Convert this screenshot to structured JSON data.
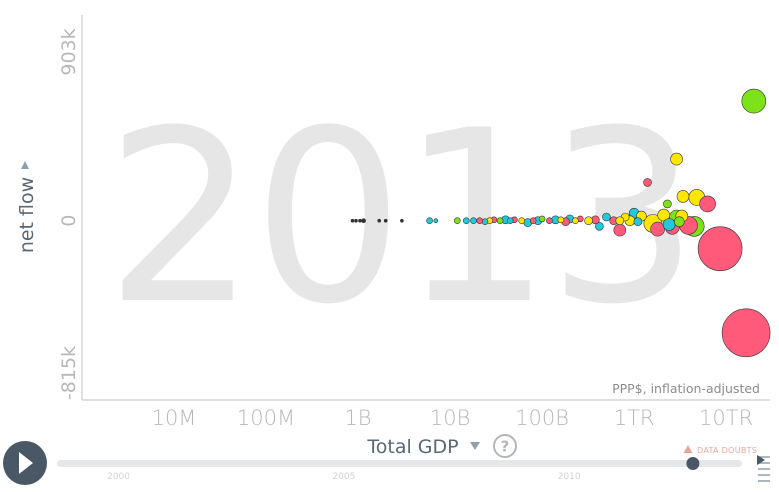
{
  "chart_data": {
    "type": "scatter",
    "year": "2013",
    "xlabel": "Total GDP",
    "ylabel": "net flow",
    "x_scale": "log",
    "x_ticks": [
      "10M",
      "100M",
      "1B",
      "10B",
      "100B",
      "1TR",
      "10TR"
    ],
    "x_tick_values": [
      10000000,
      100000000,
      1000000000,
      10000000000,
      100000000000,
      1000000000000,
      10000000000000
    ],
    "xlim": [
      1000000,
      30000000000000
    ],
    "y_ticks": [
      "903k",
      "0",
      "-815k"
    ],
    "y_tick_values": [
      903000,
      0,
      -815000
    ],
    "ylim": [
      -815000,
      903000
    ],
    "unit_note": "PPP$, inflation-adjusted",
    "colors": {
      "cyan": "#22c9dc",
      "pink": "#ff5a79",
      "yellow": "#ffe600",
      "green": "#7ee21b",
      "dark": "#333333"
    },
    "points": [
      {
        "x": 20000000000000,
        "y": 640000,
        "r": 12,
        "c": "green"
      },
      {
        "x": 2900000000000,
        "y": 330000,
        "r": 6,
        "c": "yellow"
      },
      {
        "x": 1400000000000,
        "y": 205000,
        "r": 4,
        "c": "pink"
      },
      {
        "x": 3400000000000,
        "y": 130000,
        "r": 6,
        "c": "yellow"
      },
      {
        "x": 4800000000000,
        "y": 125000,
        "r": 8,
        "c": "yellow"
      },
      {
        "x": 6300000000000,
        "y": 90000,
        "r": 8,
        "c": "pink"
      },
      {
        "x": 2300000000000,
        "y": 90000,
        "r": 4,
        "c": "green"
      },
      {
        "x": 2100000000000,
        "y": 30000,
        "r": 6,
        "c": "yellow"
      },
      {
        "x": 2900000000000,
        "y": 20000,
        "r": 7,
        "c": "green"
      },
      {
        "x": 3300000000000,
        "y": 25000,
        "r": 6,
        "c": "yellow"
      },
      {
        "x": 1000000000000,
        "y": 40000,
        "r": 5,
        "c": "cyan"
      },
      {
        "x": 1200000000000,
        "y": 25000,
        "r": 5,
        "c": "yellow"
      },
      {
        "x": 1600000000000,
        "y": -15000,
        "r": 9,
        "c": "yellow"
      },
      {
        "x": 4500000000000,
        "y": -30000,
        "r": 10,
        "c": "green"
      },
      {
        "x": 3900000000000,
        "y": -25000,
        "r": 9,
        "c": "pink"
      },
      {
        "x": 2600000000000,
        "y": -35000,
        "r": 7,
        "c": "pink"
      },
      {
        "x": 1800000000000,
        "y": -45000,
        "r": 7,
        "c": "pink"
      },
      {
        "x": 2400000000000,
        "y": -20000,
        "r": 6,
        "c": "cyan"
      },
      {
        "x": 3100000000000,
        "y": -5000,
        "r": 5,
        "c": "green"
      },
      {
        "x": 700000000000,
        "y": -50000,
        "r": 6,
        "c": "pink"
      },
      {
        "x": 800000000000,
        "y": 20000,
        "r": 4,
        "c": "yellow"
      },
      {
        "x": 500000000000,
        "y": 20000,
        "r": 4,
        "c": "cyan"
      },
      {
        "x": 420000000000,
        "y": -30000,
        "r": 4,
        "c": "cyan"
      },
      {
        "x": 600000000000,
        "y": 0,
        "r": 4,
        "c": "pink"
      },
      {
        "x": 700000000000,
        "y": 0,
        "r": 4,
        "c": "yellow"
      },
      {
        "x": 900000000000,
        "y": 0,
        "r": 5,
        "c": "yellow"
      },
      {
        "x": 1100000000000,
        "y": -5000,
        "r": 4,
        "c": "cyan"
      },
      {
        "x": 380000000000,
        "y": 5000,
        "r": 4,
        "c": "pink"
      },
      {
        "x": 320000000000,
        "y": 0,
        "r": 4,
        "c": "yellow"
      },
      {
        "x": 260000000000,
        "y": 10000,
        "r": 3,
        "c": "pink"
      },
      {
        "x": 230000000000,
        "y": 0,
        "r": 3,
        "c": "yellow"
      },
      {
        "x": 200000000000,
        "y": 10000,
        "r": 4,
        "c": "cyan"
      },
      {
        "x": 180000000000,
        "y": -5000,
        "r": 4,
        "c": "pink"
      },
      {
        "x": 160000000000,
        "y": 5000,
        "r": 3,
        "c": "yellow"
      },
      {
        "x": 140000000000,
        "y": 5000,
        "r": 4,
        "c": "cyan"
      },
      {
        "x": 120000000000,
        "y": 0,
        "r": 3,
        "c": "pink"
      },
      {
        "x": 100000000000,
        "y": 10000,
        "r": 3,
        "c": "green"
      },
      {
        "x": 90000000000,
        "y": 0,
        "r": 4,
        "c": "cyan"
      },
      {
        "x": 80000000000,
        "y": 0,
        "r": 3,
        "c": "pink"
      },
      {
        "x": 70000000000,
        "y": -10000,
        "r": 4,
        "c": "cyan"
      },
      {
        "x": 60000000000,
        "y": 0,
        "r": 3,
        "c": "yellow"
      },
      {
        "x": 50000000000,
        "y": 5000,
        "r": 3,
        "c": "pink"
      },
      {
        "x": 45000000000,
        "y": 0,
        "r": 3,
        "c": "cyan"
      },
      {
        "x": 40000000000,
        "y": 5000,
        "r": 4,
        "c": "cyan"
      },
      {
        "x": 35000000000,
        "y": 0,
        "r": 3,
        "c": "green"
      },
      {
        "x": 30000000000,
        "y": 5000,
        "r": 3,
        "c": "pink"
      },
      {
        "x": 27000000000,
        "y": 0,
        "r": 3,
        "c": "yellow"
      },
      {
        "x": 24000000000,
        "y": -5000,
        "r": 3,
        "c": "cyan"
      },
      {
        "x": 21000000000,
        "y": 0,
        "r": 3,
        "c": "pink"
      },
      {
        "x": 18000000000,
        "y": 0,
        "r": 3,
        "c": "cyan"
      },
      {
        "x": 15000000000,
        "y": 0,
        "r": 3,
        "c": "cyan"
      },
      {
        "x": 12000000000,
        "y": 0,
        "r": 3,
        "c": "green"
      },
      {
        "x": 6000000000,
        "y": 0,
        "r": 3,
        "c": "cyan"
      },
      {
        "x": 7000000000,
        "y": 0,
        "r": 2,
        "c": "cyan"
      },
      {
        "x": 3000000000,
        "y": 0,
        "r": 1.5,
        "c": "dark"
      },
      {
        "x": 2000000000,
        "y": 0,
        "r": 1.5,
        "c": "dark"
      },
      {
        "x": 1700000000,
        "y": 0,
        "r": 1.5,
        "c": "dark"
      },
      {
        "x": 1150000000,
        "y": 0,
        "r": 2,
        "c": "dark"
      },
      {
        "x": 1050000000,
        "y": 0,
        "r": 1.5,
        "c": "dark"
      },
      {
        "x": 950000000,
        "y": 0,
        "r": 1.5,
        "c": "dark"
      },
      {
        "x": 870000000,
        "y": 0,
        "r": 1.5,
        "c": "dark"
      },
      {
        "x": 16500000000000,
        "y": -600000,
        "r": 24,
        "c": "pink"
      },
      {
        "x": 8600000000000,
        "y": -150000,
        "r": 22,
        "c": "pink"
      }
    ]
  },
  "help": {
    "label": "?"
  },
  "data_doubts": {
    "label": "DATA DOUBTS"
  },
  "timeline": {
    "start": 1999,
    "end": 2014,
    "value": 2013,
    "year_labels": [
      "2000",
      "2005",
      "2010"
    ],
    "year_label_values": [
      2000,
      2005,
      2010
    ]
  }
}
